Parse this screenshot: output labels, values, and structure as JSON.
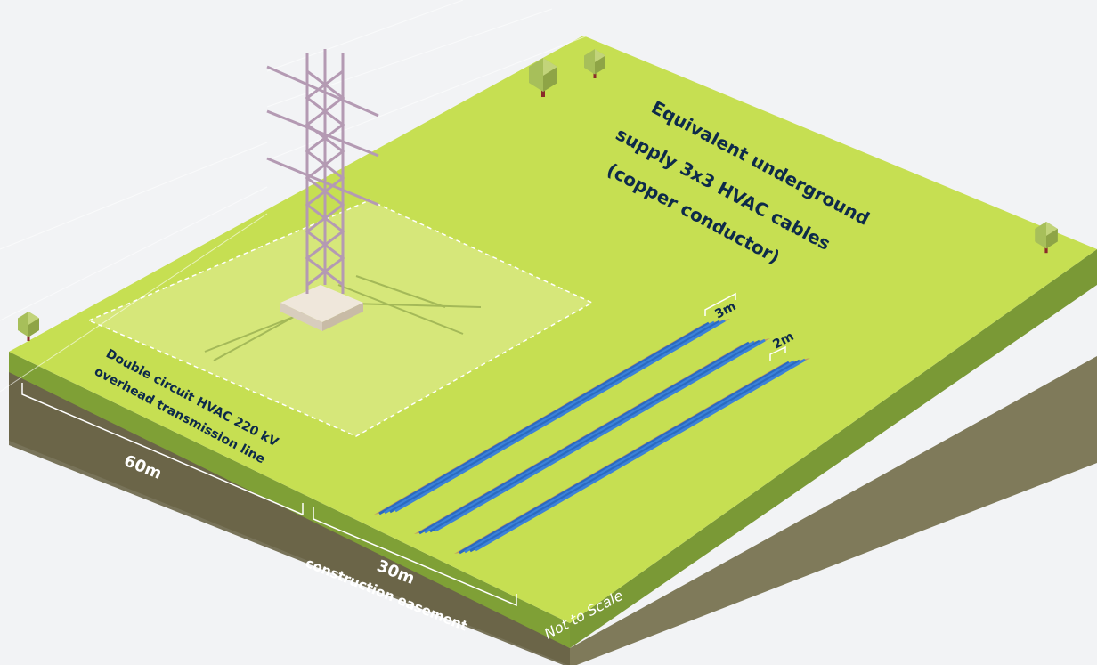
{
  "labels": {
    "underground_line1": "Equivalent underground",
    "underground_line2": "supply 3x3 HVAC cables",
    "underground_line3": "(copper conductor)",
    "overhead_line1": "Double circuit HVAC 220 kV",
    "overhead_line2": "overhead transmission line",
    "width_60": "60m",
    "width_30": "30m",
    "easement": "construction easement",
    "spacing_3": "3m",
    "spacing_2": "2m",
    "not_to_scale": "Not to Scale"
  },
  "colors": {
    "grass_top": "#c6df52",
    "grass_light": "#d6e77a",
    "grass_side": "#93b23a",
    "soil_front": "#6f6a4d",
    "soil_right": "#7f7a5a",
    "tower": "#b49ab3",
    "cable": "#2f73c9",
    "trench": "#c29a62",
    "label_text": "#0d2a4a"
  }
}
